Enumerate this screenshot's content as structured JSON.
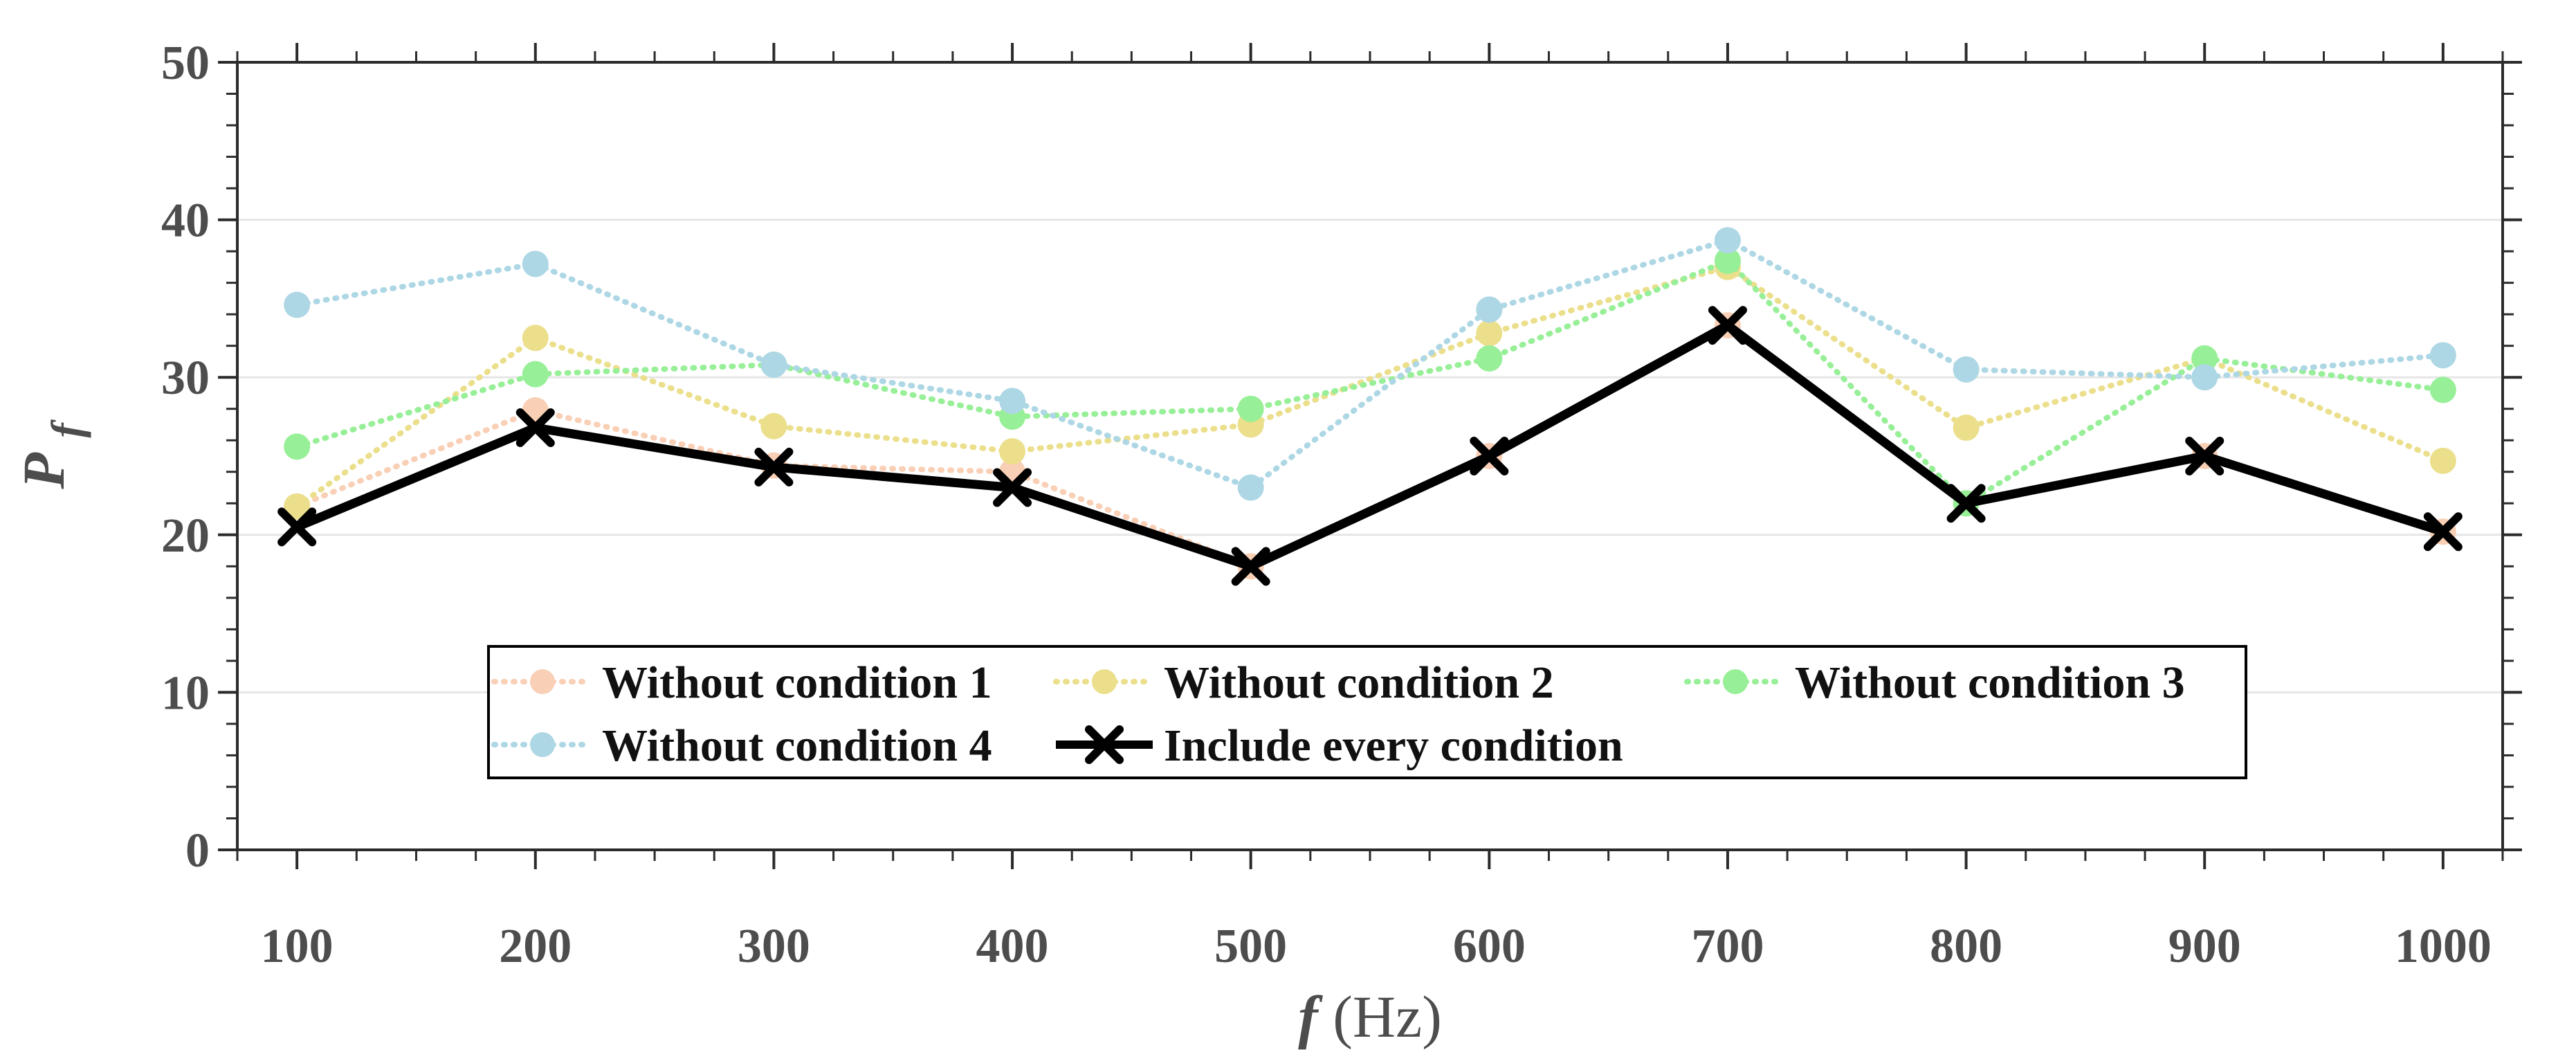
{
  "chart_data": {
    "type": "line",
    "xlabel": {
      "main": "f",
      "unit": " (Hz)"
    },
    "ylabel": {
      "main": "P",
      "sub": "f"
    },
    "x": [
      100,
      200,
      300,
      400,
      500,
      600,
      700,
      800,
      900,
      1000
    ],
    "xlim": [
      75,
      1025
    ],
    "ylim": [
      0,
      50
    ],
    "xticks": [
      "100",
      "200",
      "300",
      "400",
      "500",
      "600",
      "700",
      "800",
      "900",
      "1000"
    ],
    "yticks": [
      "0",
      "10",
      "20",
      "30",
      "40",
      "50"
    ],
    "grid": true,
    "legend_position": "lower-center",
    "series": [
      {
        "name": "Without condition 1",
        "color": "#f9cfb5",
        "style": "dotted-circle",
        "values": [
          21.8,
          27.9,
          24.4,
          24.0,
          18.0,
          25.0,
          33.3,
          22.0,
          25.0,
          20.2
        ]
      },
      {
        "name": "Without condition 2",
        "color": "#ebdf8c",
        "style": "dotted-circle",
        "values": [
          21.8,
          32.5,
          26.9,
          25.3,
          27.0,
          32.8,
          37.0,
          26.8,
          31.2,
          24.7
        ]
      },
      {
        "name": "Without condition 3",
        "color": "#97ef97",
        "style": "dotted-circle",
        "values": [
          25.6,
          30.2,
          30.8,
          27.5,
          28.0,
          31.2,
          37.4,
          22.0,
          31.2,
          29.2
        ]
      },
      {
        "name": "Without condition 4",
        "color": "#add7e4",
        "style": "dotted-circle",
        "values": [
          34.6,
          37.2,
          30.8,
          28.5,
          23.0,
          34.3,
          38.7,
          30.5,
          30.0,
          31.4
        ]
      },
      {
        "name": "Include every condition",
        "color": "#000000",
        "style": "solid-x",
        "values": [
          20.5,
          26.8,
          24.3,
          23.0,
          18.0,
          25.0,
          33.3,
          22.0,
          25.0,
          20.2
        ]
      }
    ]
  }
}
